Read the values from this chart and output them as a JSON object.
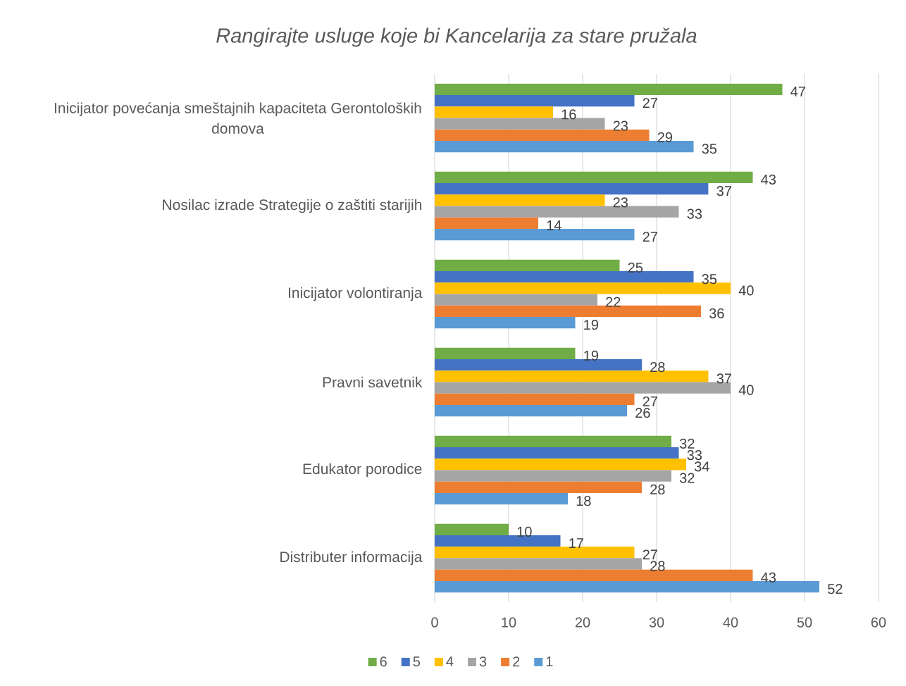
{
  "chart_data": {
    "type": "bar",
    "orientation": "horizontal",
    "title": "Rangirajte usluge koje bi Kancelarija za stare pružala",
    "categories": [
      "Inicijator povećanja smeštajnih kapaciteta Gerontoloških domova",
      "Nosilac izrade Strategije o zaštiti starijih",
      "Inicijator volontiranja",
      "Pravni savetnik",
      "Edukator porodice",
      "Distributer informacija"
    ],
    "series": [
      {
        "name": "6",
        "color": "#70ad47",
        "values": [
          47,
          43,
          25,
          19,
          32,
          10
        ]
      },
      {
        "name": "5",
        "color": "#4472c4",
        "values": [
          27,
          37,
          35,
          28,
          33,
          17
        ]
      },
      {
        "name": "4",
        "color": "#ffc000",
        "values": [
          16,
          23,
          40,
          37,
          34,
          27
        ]
      },
      {
        "name": "3",
        "color": "#a5a5a5",
        "values": [
          23,
          33,
          22,
          40,
          32,
          28
        ]
      },
      {
        "name": "2",
        "color": "#ed7d31",
        "values": [
          29,
          14,
          36,
          27,
          28,
          43
        ]
      },
      {
        "name": "1",
        "color": "#5b9bd5",
        "values": [
          35,
          27,
          19,
          26,
          18,
          52
        ]
      }
    ],
    "xlim": [
      0,
      60
    ],
    "xticks": [
      0,
      10,
      20,
      30,
      40,
      50,
      60
    ],
    "grid": "x",
    "legend": "bottom",
    "data_labels": true
  }
}
